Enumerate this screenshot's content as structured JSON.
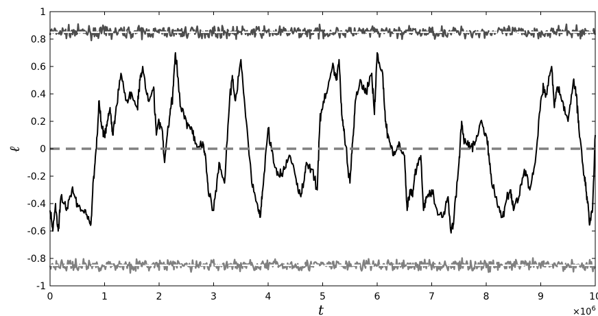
{
  "chart_data": {
    "type": "line",
    "title": "",
    "xlabel": "t",
    "ylabel": "ℓ",
    "x_multiplier_label": "×10",
    "x_multiplier_exponent": "6",
    "xlim": [
      0,
      10
    ],
    "ylim": [
      -1,
      1
    ],
    "xticks": [
      0,
      1,
      2,
      3,
      4,
      5,
      6,
      7,
      8,
      9,
      10
    ],
    "yticks": [
      -1,
      -0.8,
      -0.6,
      -0.4,
      -0.2,
      0,
      0.2,
      0.4,
      0.6,
      0.8,
      1
    ],
    "ytick_labels": [
      "-1",
      "-0.8",
      "-0.6",
      "-0.4",
      "-0.2",
      "0",
      "0.2",
      "0.4",
      "0.6",
      "0.8",
      "1"
    ],
    "grid": false,
    "legend": "none",
    "colors": {
      "main_series": "#000000",
      "upper_band": "#4d4d4d",
      "lower_band": "#808080",
      "zero_dash": "#808080",
      "band_dash": "#ffffff"
    },
    "series": [
      {
        "style": "solid",
        "x": [
          0,
          0.05,
          0.1,
          0.15,
          0.2,
          0.3,
          0.4,
          0.5,
          0.6,
          0.7,
          0.75,
          0.8,
          0.85,
          0.9,
          0.95,
          1.0,
          1.05,
          1.1,
          1.15,
          1.2,
          1.3,
          1.4,
          1.5,
          1.6,
          1.65,
          1.7,
          1.8,
          1.9,
          1.95,
          2.0,
          2.05,
          2.1,
          2.15,
          2.2,
          2.25,
          2.3,
          2.4,
          2.5,
          2.6,
          2.7,
          2.8,
          2.85,
          2.9,
          3.0,
          3.1,
          3.2,
          3.3,
          3.35,
          3.4,
          3.5,
          3.6,
          3.7,
          3.8,
          3.85,
          3.9,
          4.0,
          4.1,
          4.2,
          4.3,
          4.4,
          4.5,
          4.6,
          4.65,
          4.7,
          4.8,
          4.9,
          4.95,
          5.0,
          5.1,
          5.2,
          5.25,
          5.3,
          5.35,
          5.4,
          5.5,
          5.55,
          5.6,
          5.7,
          5.8,
          5.9,
          5.95,
          6.0,
          6.1,
          6.15,
          6.2,
          6.3,
          6.4,
          6.5,
          6.55,
          6.6,
          6.65,
          6.7,
          6.8,
          6.85,
          6.9,
          7.0,
          7.1,
          7.2,
          7.3,
          7.35,
          7.4,
          7.5,
          7.55,
          7.6,
          7.7,
          7.8,
          7.9,
          8.0,
          8.05,
          8.1,
          8.2,
          8.3,
          8.4,
          8.45,
          8.5,
          8.6,
          8.7,
          8.8,
          8.9,
          9.0,
          9.05,
          9.1,
          9.2,
          9.25,
          9.3,
          9.4,
          9.5,
          9.6,
          9.65,
          9.7,
          9.8,
          9.85,
          9.9,
          9.95,
          10.0
        ],
        "y": [
          -0.45,
          -0.6,
          -0.4,
          -0.6,
          -0.35,
          -0.45,
          -0.3,
          -0.4,
          -0.45,
          -0.5,
          -0.55,
          -0.2,
          0.0,
          0.35,
          0.15,
          0.1,
          0.2,
          0.3,
          0.1,
          0.25,
          0.55,
          0.35,
          0.4,
          0.3,
          0.5,
          0.6,
          0.35,
          0.45,
          0.1,
          0.2,
          0.15,
          -0.1,
          0.1,
          0.25,
          0.4,
          0.7,
          0.3,
          0.2,
          0.15,
          0.0,
          0.05,
          -0.05,
          -0.3,
          -0.45,
          -0.1,
          -0.25,
          0.4,
          0.5,
          0.35,
          0.65,
          0.2,
          -0.25,
          -0.4,
          -0.5,
          -0.3,
          0.15,
          -0.1,
          -0.2,
          -0.15,
          -0.05,
          -0.2,
          -0.35,
          -0.25,
          -0.1,
          -0.15,
          -0.3,
          0.2,
          0.3,
          0.45,
          0.6,
          0.5,
          0.65,
          0.25,
          0.1,
          -0.25,
          0.05,
          0.35,
          0.5,
          0.4,
          0.55,
          0.25,
          0.7,
          0.55,
          0.2,
          0.1,
          -0.05,
          0.05,
          -0.05,
          -0.45,
          -0.3,
          -0.35,
          -0.15,
          -0.05,
          -0.45,
          -0.35,
          -0.3,
          -0.45,
          -0.5,
          -0.35,
          -0.6,
          -0.55,
          -0.1,
          0.2,
          0.05,
          0.0,
          0.05,
          0.2,
          0.1,
          -0.05,
          -0.25,
          -0.4,
          -0.5,
          -0.35,
          -0.3,
          -0.45,
          -0.35,
          -0.15,
          -0.3,
          -0.1,
          0.35,
          0.45,
          0.4,
          0.6,
          0.3,
          0.45,
          0.35,
          0.2,
          0.5,
          0.4,
          0.15,
          -0.2,
          -0.35,
          -0.55,
          -0.45,
          0.1
        ]
      }
    ],
    "bands": [
      {
        "level": 0.85,
        "spread": 0.05
      },
      {
        "level": -0.85,
        "spread": 0.05
      }
    ],
    "reference_lines": [
      {
        "y": 0,
        "style": "dashed"
      },
      {
        "y": 0.85,
        "style": "dashed"
      },
      {
        "y": -0.85,
        "style": "dashed"
      }
    ]
  }
}
